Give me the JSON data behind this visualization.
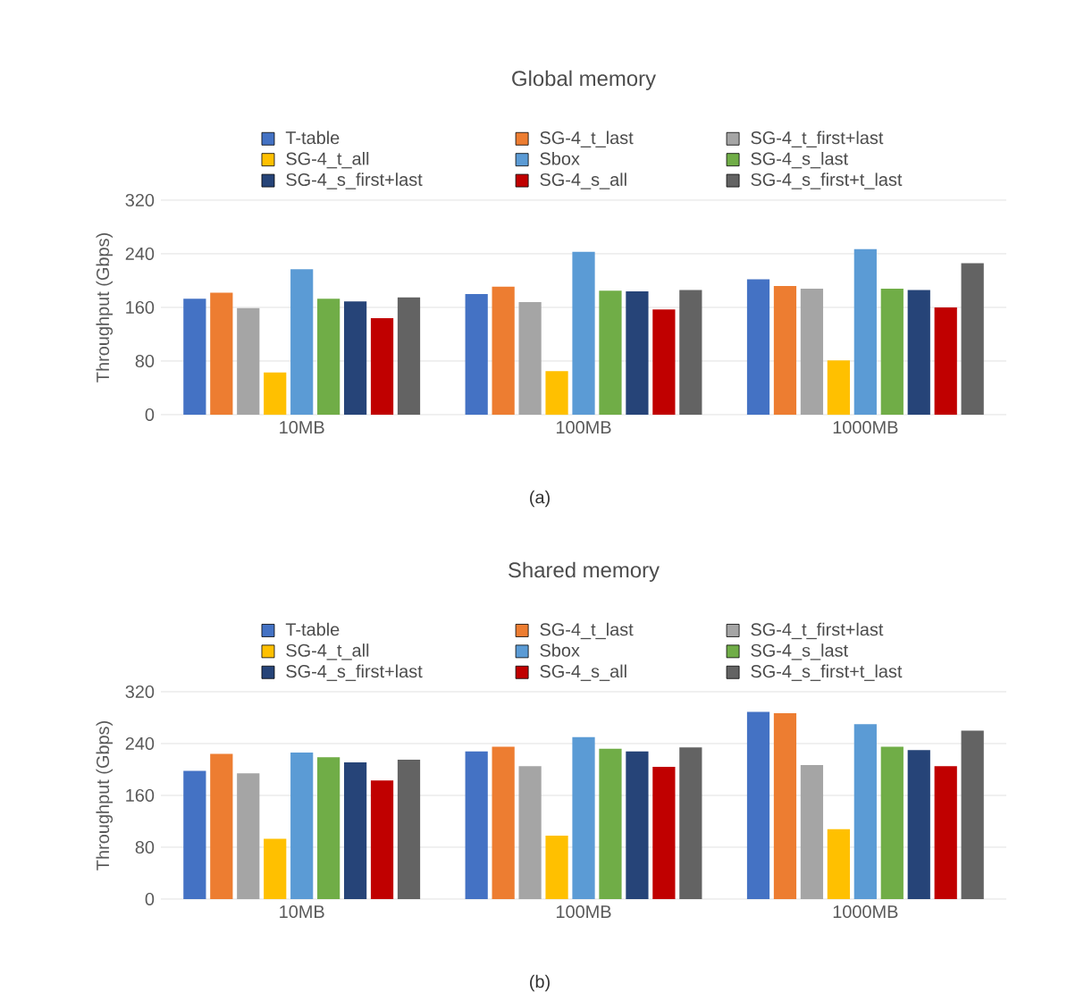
{
  "chart_data": [
    {
      "type": "bar",
      "title": "Global memory",
      "ylabel": "Throughput (Gbps)",
      "categories": [
        "10MB",
        "100MB",
        "1000MB"
      ],
      "ylim": [
        0,
        320
      ],
      "yticks": [
        0,
        80,
        160,
        240,
        320
      ],
      "grid": "y",
      "legend": "top",
      "annotations": [
        "(a)"
      ],
      "series": [
        {
          "name": "T-table",
          "color": "#4472c4",
          "values": [
            173,
            180,
            202
          ]
        },
        {
          "name": "SG-4_t_last",
          "color": "#ed7d31",
          "values": [
            182,
            191,
            192
          ]
        },
        {
          "name": "SG-4_t_first+last",
          "color": "#a5a5a5",
          "values": [
            159,
            168,
            188
          ]
        },
        {
          "name": "SG-4_t_all",
          "color": "#ffc000",
          "values": [
            63,
            65,
            81
          ]
        },
        {
          "name": "Sbox",
          "color": "#5b9bd5",
          "values": [
            217,
            243,
            247
          ]
        },
        {
          "name": "SG-4_s_last",
          "color": "#70ad47",
          "values": [
            173,
            185,
            188
          ]
        },
        {
          "name": "SG-4_s_first+last",
          "color": "#264478",
          "values": [
            169,
            184,
            186
          ]
        },
        {
          "name": "SG-4_s_all",
          "color": "#c00000",
          "values": [
            144,
            157,
            160
          ]
        },
        {
          "name": "SG-4_s_first+t_last",
          "color": "#636363",
          "values": [
            175,
            186,
            226
          ]
        }
      ]
    },
    {
      "type": "bar",
      "title": "Shared memory",
      "ylabel": "Throughput (Gbps)",
      "categories": [
        "10MB",
        "100MB",
        "1000MB"
      ],
      "ylim": [
        0,
        320
      ],
      "yticks": [
        0,
        80,
        160,
        240,
        320
      ],
      "grid": "y",
      "legend": "top",
      "annotations": [
        "(b)"
      ],
      "series": [
        {
          "name": "T-table",
          "color": "#4472c4",
          "values": [
            198,
            228,
            289
          ]
        },
        {
          "name": "SG-4_t_last",
          "color": "#ed7d31",
          "values": [
            224,
            235,
            287
          ]
        },
        {
          "name": "SG-4_t_first+last",
          "color": "#a5a5a5",
          "values": [
            194,
            205,
            207
          ]
        },
        {
          "name": "SG-4_t_all",
          "color": "#ffc000",
          "values": [
            93,
            98,
            108
          ]
        },
        {
          "name": "Sbox",
          "color": "#5b9bd5",
          "values": [
            226,
            250,
            270
          ]
        },
        {
          "name": "SG-4_s_last",
          "color": "#70ad47",
          "values": [
            219,
            232,
            235
          ]
        },
        {
          "name": "SG-4_s_first+last",
          "color": "#264478",
          "values": [
            211,
            228,
            230
          ]
        },
        {
          "name": "SG-4_s_all",
          "color": "#c00000",
          "values": [
            183,
            204,
            205
          ]
        },
        {
          "name": "SG-4_s_first+t_last",
          "color": "#636363",
          "values": [
            215,
            234,
            260
          ]
        }
      ]
    }
  ]
}
